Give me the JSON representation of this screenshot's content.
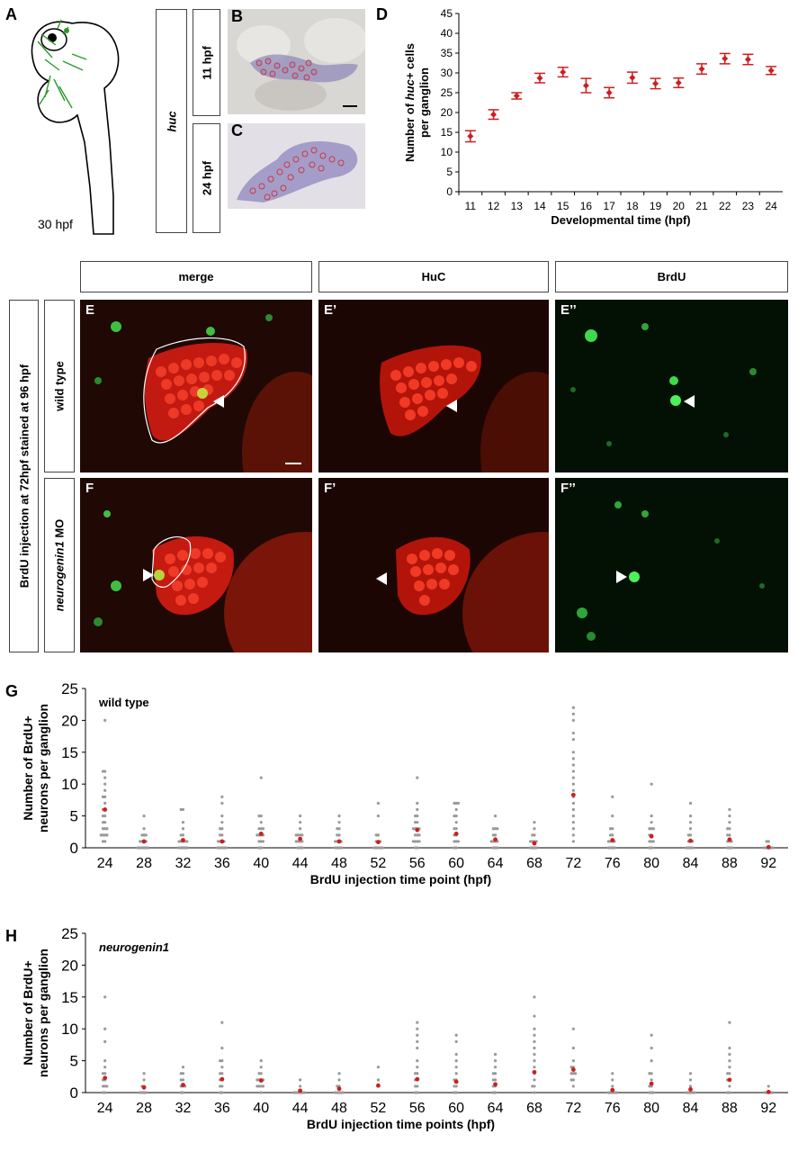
{
  "panel_letters": {
    "A": "A",
    "B": "B",
    "C": "C",
    "D": "D",
    "G": "G",
    "H": "H"
  },
  "panel_a": {
    "stage_label": "30 hpf"
  },
  "panel_bc": {
    "gene_label": "huc",
    "row1_label": "11 hpf",
    "row2_label": "24 hpf"
  },
  "panel_e": {
    "headers": {
      "merge": "merge",
      "huc": "HuC",
      "brdu": "BrdU"
    },
    "side_label": "BrdU injection at 72hpf stained at 96 hpf",
    "row_wt": "wild type",
    "row_mo_gene": "neurogenin1",
    "row_mo_suffix": " MO",
    "image_labels": {
      "E": "E",
      "E1": "E’",
      "E2": "E’’",
      "F": "F",
      "F1": "F’",
      "F2": "F’’"
    }
  },
  "colors": {
    "marker": "#cc1f1f",
    "dot_grey": "#999999",
    "huc_red": "#e02a1a",
    "brdu_green": "#3fd94a"
  },
  "chart_data": [
    {
      "id": "D",
      "type": "scatter",
      "xlabel": "Developmental time (hpf)",
      "ylabel_parts": [
        "Number of ",
        "huc+",
        " cells",
        "per ganglion"
      ],
      "categories": [
        "11",
        "12",
        "13",
        "14",
        "15",
        "16",
        "17",
        "18",
        "19",
        "20",
        "21",
        "22",
        "23",
        "24"
      ],
      "values": [
        14,
        19.5,
        24.2,
        28.7,
        30.2,
        26.8,
        25,
        28.8,
        27.3,
        27.5,
        31,
        33.6,
        33.4,
        30.6
      ],
      "errors": [
        1.4,
        1.2,
        0.8,
        1.2,
        1.2,
        1.8,
        1.3,
        1.4,
        1.3,
        1.2,
        1.3,
        1.3,
        1.3,
        1.0
      ],
      "ylim": [
        0,
        45
      ],
      "yticks": [
        "0",
        "5",
        "10",
        "15",
        "20",
        "25",
        "30",
        "35",
        "40",
        "45"
      ]
    },
    {
      "id": "G",
      "type": "scatter",
      "title": "wild type",
      "xlabel": "BrdU injection time point (hpf)",
      "ylabel_parts": [
        "Number of BrdU+",
        "neurons per ganglion"
      ],
      "categories": [
        "24",
        "28",
        "32",
        "36",
        "40",
        "44",
        "48",
        "52",
        "56",
        "60",
        "64",
        "68",
        "72",
        "76",
        "80",
        "84",
        "88",
        "92"
      ],
      "means": [
        6,
        1,
        1.2,
        1,
        2.2,
        1.4,
        1,
        0.9,
        2.8,
        2.2,
        1.3,
        0.7,
        8.3,
        1.2,
        1.8,
        1.1,
        1.3,
        0.1
      ],
      "points": [
        [
          20,
          12,
          12,
          11,
          10,
          9,
          8,
          8,
          7,
          6,
          6,
          5,
          5,
          4,
          4,
          3,
          3,
          3,
          2,
          2,
          2,
          2,
          1,
          1
        ],
        [
          5,
          3,
          2,
          2,
          2,
          1,
          1,
          1,
          1,
          0,
          0,
          0,
          0,
          0,
          0
        ],
        [
          6,
          6,
          4,
          3,
          2,
          2,
          1,
          1,
          1,
          1,
          1,
          0,
          0,
          0,
          0,
          0
        ],
        [
          8,
          7,
          5,
          4,
          3,
          3,
          2,
          2,
          1,
          1,
          1,
          1,
          0,
          0,
          0,
          0,
          0
        ],
        [
          11,
          5,
          5,
          4,
          3,
          3,
          3,
          2,
          2,
          2,
          2,
          1,
          1,
          1,
          0,
          0
        ],
        [
          5,
          4,
          3,
          2,
          2,
          2,
          2,
          1,
          1,
          1,
          1,
          0,
          0,
          0
        ],
        [
          5,
          4,
          3,
          3,
          2,
          2,
          1,
          1,
          1,
          1,
          0,
          0,
          0,
          0
        ],
        [
          7,
          5,
          2,
          2,
          1,
          1,
          1,
          0,
          0,
          0,
          0,
          0
        ],
        [
          11,
          7,
          6,
          5,
          5,
          4,
          4,
          3,
          3,
          3,
          3,
          2,
          2,
          2,
          1,
          1,
          1,
          1,
          0,
          0
        ],
        [
          7,
          7,
          7,
          6,
          5,
          5,
          4,
          3,
          3,
          2,
          2,
          1,
          1,
          1,
          0,
          0
        ],
        [
          5,
          3,
          3,
          3,
          2,
          2,
          1,
          1,
          1,
          1,
          0,
          0,
          0
        ],
        [
          4,
          3,
          2,
          2,
          1,
          1,
          1,
          1,
          0,
          0,
          0,
          0
        ],
        [
          22,
          21,
          20,
          18,
          17,
          15,
          14,
          13,
          12,
          11,
          10,
          9,
          8,
          7,
          6,
          5,
          4,
          3,
          2,
          1
        ],
        [
          8,
          5,
          3,
          3,
          2,
          2,
          1,
          1,
          1,
          1,
          0,
          0,
          0,
          0
        ],
        [
          10,
          5,
          4,
          3,
          3,
          3,
          2,
          2,
          1,
          1,
          1,
          0,
          0
        ],
        [
          7,
          5,
          4,
          3,
          2,
          2,
          1,
          1,
          1,
          0,
          0,
          0,
          0
        ],
        [
          6,
          5,
          4,
          3,
          3,
          2,
          2,
          1,
          1,
          1,
          0,
          0,
          0
        ],
        [
          1,
          1,
          0,
          0,
          0,
          0,
          0
        ]
      ],
      "ylim": [
        0,
        25
      ],
      "yticks": [
        "0",
        "5",
        "10",
        "15",
        "20",
        "25"
      ]
    },
    {
      "id": "H",
      "type": "scatter",
      "title": "neurogenin1",
      "xlabel": "BrdU injection time points (hpf)",
      "ylabel_parts": [
        "Number of BrdU+",
        "neurons per ganglion"
      ],
      "categories": [
        "24",
        "28",
        "32",
        "36",
        "40",
        "44",
        "48",
        "52",
        "56",
        "60",
        "64",
        "68",
        "72",
        "76",
        "80",
        "84",
        "88",
        "92"
      ],
      "means": [
        2.3,
        0.8,
        1.2,
        2.1,
        1.9,
        0.3,
        0.6,
        1.1,
        2.1,
        1.7,
        1.3,
        3.2,
        3.6,
        0.4,
        1.4,
        0.5,
        2,
        0.1
      ],
      "points": [
        [
          15,
          10,
          8,
          5,
          4,
          3,
          3,
          2,
          2,
          1,
          1,
          1,
          0,
          0
        ],
        [
          3,
          2,
          1,
          1,
          0,
          0,
          0,
          0
        ],
        [
          4,
          3,
          3,
          2,
          2,
          1,
          1,
          1,
          0,
          0
        ],
        [
          11,
          7,
          5,
          5,
          4,
          3,
          3,
          2,
          2,
          1,
          1,
          0,
          0
        ],
        [
          5,
          4,
          3,
          3,
          2,
          2,
          2,
          2,
          1,
          1,
          1,
          1,
          0
        ],
        [
          2,
          1,
          0,
          0,
          0,
          0,
          0,
          0
        ],
        [
          3,
          2,
          1,
          1,
          0,
          0,
          0,
          0,
          0
        ],
        [
          4,
          2,
          1
        ],
        [
          11,
          10,
          9,
          8,
          7,
          5,
          4,
          3,
          3,
          2,
          2,
          1,
          1,
          0,
          0
        ],
        [
          9,
          8,
          6,
          5,
          4,
          3,
          2,
          2,
          1,
          1,
          0,
          0
        ],
        [
          6,
          5,
          4,
          3,
          3,
          2,
          2,
          1,
          1,
          0,
          0
        ],
        [
          15,
          12,
          10,
          9,
          8,
          7,
          6,
          5,
          4,
          3,
          2,
          1,
          1,
          0
        ],
        [
          10,
          7,
          5,
          4,
          4,
          3,
          3,
          3,
          2,
          2,
          1
        ],
        [
          3,
          2,
          1,
          0,
          0,
          0,
          0,
          0
        ],
        [
          9,
          7,
          5,
          3,
          3,
          2,
          1,
          1,
          0,
          0,
          0
        ],
        [
          3,
          2,
          1,
          0,
          0,
          0,
          0,
          0
        ],
        [
          11,
          7,
          6,
          5,
          4,
          3,
          3,
          2,
          2,
          1,
          0,
          0
        ],
        [
          1,
          0,
          0,
          0,
          0,
          0
        ]
      ],
      "ylim": [
        0,
        25
      ],
      "yticks": [
        "0",
        "5",
        "10",
        "15",
        "20",
        "25"
      ]
    }
  ]
}
